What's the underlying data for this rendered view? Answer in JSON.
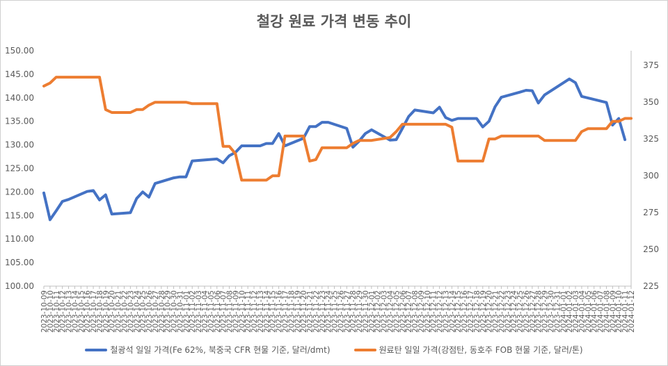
{
  "chart_data": {
    "type": "line",
    "title": "철강 원료 가격 변동 추이",
    "categories": [
      "2023-10-09",
      "2023-10-10",
      "2023-10-11",
      "2023-10-12",
      "2023-10-13",
      "2023-10-14",
      "2023-10-15",
      "2023-10-16",
      "2023-10-17",
      "2023-10-18",
      "2023-10-19",
      "2023-10-20",
      "2023-10-21",
      "2023-10-22",
      "2023-10-23",
      "2023-10-24",
      "2023-10-25",
      "2023-10-26",
      "2023-10-27",
      "2023-10-28",
      "2023-10-29",
      "2023-10-30",
      "2023-10-31",
      "2023-11-01",
      "2023-11-02",
      "2023-11-03",
      "2023-11-04",
      "2023-11-05",
      "2023-11-06",
      "2023-11-07",
      "2023-11-08",
      "2023-11-09",
      "2023-11-10",
      "2023-11-11",
      "2023-11-12",
      "2023-11-13",
      "2023-11-14",
      "2023-11-15",
      "2023-11-16",
      "2023-11-17",
      "2023-11-18",
      "2023-11-19",
      "2023-11-20",
      "2023-11-21",
      "2023-11-22",
      "2023-11-23",
      "2023-11-24",
      "2023-11-25",
      "2023-11-26",
      "2023-11-27",
      "2023-11-28",
      "2023-11-29",
      "2023-11-30",
      "2023-12-01",
      "2023-12-02",
      "2023-12-03",
      "2023-12-04",
      "2023-12-05",
      "2023-12-06",
      "2023-12-07",
      "2023-12-08",
      "2023-12-09",
      "2023-12-10",
      "2023-12-11",
      "2023-12-12",
      "2023-12-13",
      "2023-12-14",
      "2023-12-15",
      "2023-12-16",
      "2023-12-17",
      "2023-12-18",
      "2023-12-19",
      "2023-12-20",
      "2023-12-21",
      "2023-12-22",
      "2023-12-23",
      "2023-12-24",
      "2023-12-25",
      "2023-12-26",
      "2023-12-27",
      "2023-12-28",
      "2023-12-29",
      "2023-12-30",
      "2023-12-31",
      "2024-01-01",
      "2024-01-02",
      "2024-01-03",
      "2024-01-04",
      "2024-01-05",
      "2024-01-06",
      "2024-01-07",
      "2024-01-08",
      "2024-01-09",
      "2024-01-10",
      "2024-01-11",
      "2024-01-12"
    ],
    "tick_labels": [
      "2023-10-09",
      "2023-10-10",
      "2023-10-11",
      "2023-10-12",
      "2023-10-13",
      "2023-10-14",
      "2023-10-15",
      "2023-10-16",
      "2023-10-17",
      "2023-10-18",
      "2023-10-19",
      "2023-10-20",
      "2023-10-21",
      "2023-10-22",
      "2023-10-23",
      "2023-10-24",
      "2023-10-25",
      "2023-10-26",
      "2023-10-27",
      "2023-10-28",
      "2023-10-29",
      "2023-10-30",
      "2023-10-31",
      "2023-11-01",
      "2023-11-02",
      "2023-11-03",
      "2023-11-04",
      "2023-11-05",
      "2023-11-06",
      "2023-11-07",
      "2023-11-08",
      "2023-11-09",
      "2023-11-10",
      "2023-11-11",
      "2023-11-12",
      "2023-11-13",
      "2023-11-14",
      "2023-11-15",
      "2023-11-16",
      "2023-11-17",
      "2023-11-18",
      "2023-11-19",
      "2023-11-20",
      "2023-11-21",
      "2023-11-22",
      "2023-11-23",
      "2023-11-24",
      "2023-11-25",
      "2023-11-26",
      "2023-11-27",
      "2023-11-28",
      "2023-11-29",
      "2023-11-30",
      "2023-12-01",
      "2023-12-02",
      "2023-12-03",
      "2023-12-04",
      "2023-12-05",
      "2023-12-06",
      "2023-12-07",
      "2023-12-08",
      "2023-12-09",
      "2023-12-10",
      "2023-12-11",
      "2023-12-12",
      "2023-12-13",
      "2023-12-14",
      "2023-12-15",
      "2023-12-16",
      "2023-12-17",
      "2023-12-18",
      "2023-12-19",
      "2023-12-20",
      "2023-12-21",
      "2023-12-22",
      "2023-12-23",
      "2023-12-24",
      "2023-12-25",
      "2023-12-26",
      "2023-12-27",
      "2023-12-28",
      "2023-12-29",
      "2023-12-30",
      "2023-12-31",
      "2024-01-01",
      "2024-01-02",
      "2024-01-03",
      "2024-01-04",
      "2024-01-05",
      "2024-01-06",
      "2024-01-07",
      "2024-01-08",
      "2024-01-09",
      "2024-01-10",
      "2024-01-11",
      "2024-01-12"
    ],
    "y_left": {
      "min": 100,
      "max": 150,
      "step": 5,
      "decimals": 2
    },
    "y_right": {
      "min": 225,
      "max": 385,
      "ticks": [
        225,
        250,
        275,
        300,
        325,
        350,
        375
      ]
    },
    "grid": "none",
    "legend_position": "bottom",
    "series": [
      {
        "name": "철광석 일일 가격(Fe 62%, 북중국 CFR 현물 기준, 달러/dmt)",
        "axis": "left",
        "color": "#4472C4",
        "points": [
          [
            "2023-10-09",
            119.8
          ],
          [
            "2023-10-10",
            114.1
          ],
          [
            "2023-10-11",
            116.0
          ],
          [
            "2023-10-12",
            118.0
          ],
          [
            "2023-10-13",
            118.4
          ],
          [
            "2023-10-16",
            120.1
          ],
          [
            "2023-10-17",
            120.3
          ],
          [
            "2023-10-18",
            118.3
          ],
          [
            "2023-10-19",
            119.4
          ],
          [
            "2023-10-20",
            115.3
          ],
          [
            "2023-10-23",
            115.6
          ],
          [
            "2023-10-24",
            118.6
          ],
          [
            "2023-10-25",
            120.0
          ],
          [
            "2023-10-26",
            118.9
          ],
          [
            "2023-10-27",
            121.8
          ],
          [
            "2023-10-30",
            123.0
          ],
          [
            "2023-10-31",
            123.2
          ],
          [
            "2023-11-01",
            123.2
          ],
          [
            "2023-11-02",
            126.6
          ],
          [
            "2023-11-06",
            127.0
          ],
          [
            "2023-11-07",
            126.2
          ],
          [
            "2023-11-08",
            127.7
          ],
          [
            "2023-11-09",
            128.4
          ],
          [
            "2023-11-10",
            129.8
          ],
          [
            "2023-11-13",
            129.8
          ],
          [
            "2023-11-14",
            130.3
          ],
          [
            "2023-11-15",
            130.3
          ],
          [
            "2023-11-16",
            132.4
          ],
          [
            "2023-11-17",
            129.8
          ],
          [
            "2023-11-20",
            131.4
          ],
          [
            "2023-11-21",
            133.9
          ],
          [
            "2023-11-22",
            133.9
          ],
          [
            "2023-11-23",
            134.8
          ],
          [
            "2023-11-24",
            134.8
          ],
          [
            "2023-11-27",
            133.5
          ],
          [
            "2023-11-28",
            129.5
          ],
          [
            "2023-11-29",
            130.8
          ],
          [
            "2023-11-30",
            132.4
          ],
          [
            "2023-12-01",
            133.2
          ],
          [
            "2023-12-04",
            131.0
          ],
          [
            "2023-12-05",
            131.1
          ],
          [
            "2023-12-06",
            133.5
          ],
          [
            "2023-12-07",
            136.0
          ],
          [
            "2023-12-08",
            137.4
          ],
          [
            "2023-12-11",
            136.8
          ],
          [
            "2023-12-12",
            138.0
          ],
          [
            "2023-12-13",
            135.8
          ],
          [
            "2023-12-14",
            135.2
          ],
          [
            "2023-12-15",
            135.6
          ],
          [
            "2023-12-18",
            135.6
          ],
          [
            "2023-12-19",
            133.8
          ],
          [
            "2023-12-20",
            135.0
          ],
          [
            "2023-12-21",
            138.1
          ],
          [
            "2023-12-22",
            140.1
          ],
          [
            "2023-12-25",
            141.2
          ],
          [
            "2023-12-26",
            141.6
          ],
          [
            "2023-12-27",
            141.5
          ],
          [
            "2023-12-28",
            138.9
          ],
          [
            "2023-12-29",
            140.6
          ],
          [
            "2024-01-02",
            144.0
          ],
          [
            "2024-01-03",
            143.2
          ],
          [
            "2024-01-04",
            140.3
          ],
          [
            "2024-01-08",
            139.0
          ],
          [
            "2024-01-09",
            134.2
          ],
          [
            "2024-01-10",
            135.6
          ],
          [
            "2024-01-11",
            131.1
          ]
        ]
      },
      {
        "name": "원료탄 일일 가격(강점탄, 동호주 FOB 현물 기준, 달러/톤)",
        "axis": "right",
        "color": "#ED7D31",
        "points": [
          [
            "2023-10-09",
            361
          ],
          [
            "2023-10-10",
            363
          ],
          [
            "2023-10-11",
            367
          ],
          [
            "2023-10-18",
            367
          ],
          [
            "2023-10-19",
            345
          ],
          [
            "2023-10-20",
            343
          ],
          [
            "2023-10-23",
            343
          ],
          [
            "2023-10-24",
            345
          ],
          [
            "2023-10-25",
            345
          ],
          [
            "2023-10-26",
            348
          ],
          [
            "2023-10-27",
            350
          ],
          [
            "2023-11-01",
            350
          ],
          [
            "2023-11-02",
            349
          ],
          [
            "2023-11-06",
            349
          ],
          [
            "2023-11-07",
            320
          ],
          [
            "2023-11-08",
            320
          ],
          [
            "2023-11-09",
            315
          ],
          [
            "2023-11-10",
            297
          ],
          [
            "2023-11-14",
            297
          ],
          [
            "2023-11-15",
            300
          ],
          [
            "2023-11-16",
            300
          ],
          [
            "2023-11-17",
            327
          ],
          [
            "2023-11-20",
            327
          ],
          [
            "2023-11-21",
            310
          ],
          [
            "2023-11-22",
            311
          ],
          [
            "2023-11-23",
            319
          ],
          [
            "2023-11-27",
            319
          ],
          [
            "2023-11-28",
            322
          ],
          [
            "2023-11-29",
            324
          ],
          [
            "2023-12-01",
            324
          ],
          [
            "2023-12-04",
            326
          ],
          [
            "2023-12-05",
            330
          ],
          [
            "2023-12-06",
            335
          ],
          [
            "2023-12-13",
            335
          ],
          [
            "2023-12-14",
            333
          ],
          [
            "2023-12-15",
            310
          ],
          [
            "2023-12-19",
            310
          ],
          [
            "2023-12-20",
            325
          ],
          [
            "2023-12-21",
            325
          ],
          [
            "2023-12-22",
            327
          ],
          [
            "2023-12-28",
            327
          ],
          [
            "2023-12-29",
            324
          ],
          [
            "2024-01-03",
            324
          ],
          [
            "2024-01-04",
            330
          ],
          [
            "2024-01-05",
            332
          ],
          [
            "2024-01-08",
            332
          ],
          [
            "2024-01-09",
            337
          ],
          [
            "2024-01-10",
            337
          ],
          [
            "2024-01-11",
            339
          ],
          [
            "2024-01-12",
            339
          ]
        ]
      }
    ]
  }
}
